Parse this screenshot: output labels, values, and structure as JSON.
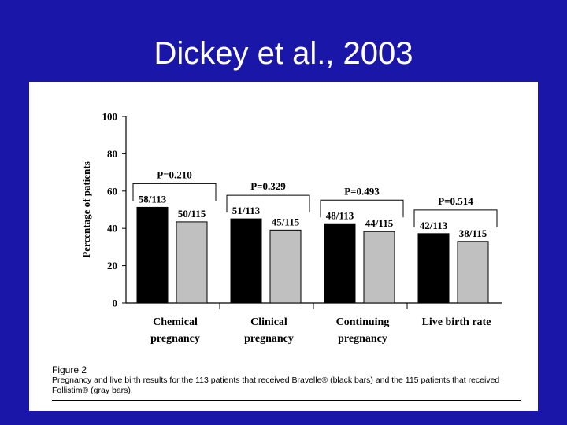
{
  "slide": {
    "title": "Dickey et al., 2003"
  },
  "figure": {
    "label": "Figure 2",
    "caption": "Pregnancy and live birth results for the 113 patients that received Bravelle® (black bars) and the 115 patients that received Follistim® (gray bars)."
  },
  "colors": {
    "background": "#1a17a8",
    "panel": "#ffffff",
    "bravelle": "#000000",
    "follistim": "#c0c0c0"
  },
  "chart_data": {
    "type": "bar",
    "ylabel": "Percentage of patients",
    "ylim": [
      0,
      100
    ],
    "yticks": [
      0,
      20,
      40,
      60,
      80,
      100
    ],
    "grid": false,
    "categories": [
      [
        "Chemical",
        "pregnancy"
      ],
      [
        "Clinical",
        "pregnancy"
      ],
      [
        "Continuing",
        "pregnancy"
      ],
      [
        "Live birth rate"
      ]
    ],
    "series": [
      {
        "color": "#000000",
        "values": [
          51.3,
          45.1,
          42.5,
          37.2
        ],
        "labels": [
          "58/113",
          "51/113",
          "48/113",
          "42/113"
        ]
      },
      {
        "color": "#c0c0c0",
        "values": [
          43.5,
          39.1,
          38.3,
          33.0
        ],
        "labels": [
          "50/115",
          "45/115",
          "44/115",
          "38/115"
        ]
      }
    ],
    "pvalues": [
      "P=0.210",
      "P=0.329",
      "P=0.493",
      "P=0.514"
    ]
  }
}
